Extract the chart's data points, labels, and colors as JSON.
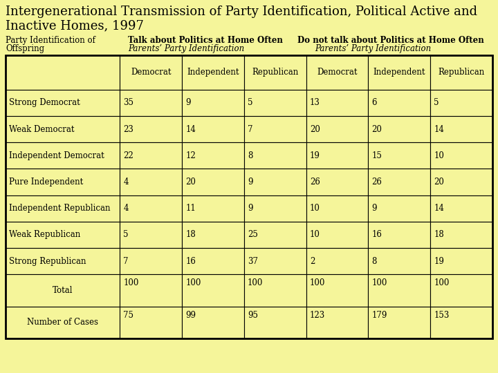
{
  "title_line1": "Intergenerational Transmission of Party Identification, Political Active and",
  "title_line2": "Inactive Homes, 1997",
  "group1_label": "Talk about Politics at Home Often",
  "group1_sublabel": "Parents’ Party Identification",
  "group2_label": "Do not talk about Politics at Home Often",
  "group2_sublabel": "Parents’ Party Identification",
  "col_header_left1": "Party Identification of",
  "col_header_left2": "Offspring",
  "col_headers": [
    "Democrat",
    "Independent",
    "Republican",
    "Democrat",
    "Independent",
    "Republican"
  ],
  "row_labels": [
    "Strong Democrat",
    "Weak Democrat",
    "Independent Democrat",
    "Pure Independent",
    "Independent Republican",
    "Weak Republican",
    "Strong Republican"
  ],
  "data": [
    [
      35,
      9,
      5,
      13,
      6,
      5
    ],
    [
      23,
      14,
      7,
      20,
      20,
      14
    ],
    [
      22,
      12,
      8,
      19,
      15,
      10
    ],
    [
      4,
      20,
      9,
      26,
      26,
      20
    ],
    [
      4,
      11,
      9,
      10,
      9,
      14
    ],
    [
      5,
      18,
      25,
      10,
      16,
      18
    ],
    [
      7,
      16,
      37,
      2,
      8,
      19
    ]
  ],
  "total_data": [
    100,
    100,
    100,
    100,
    100,
    100
  ],
  "cases_data": [
    75,
    99,
    95,
    123,
    179,
    153
  ],
  "total_label": "Total",
  "cases_label": "Number of Cases",
  "bg_color": "#f5f59a",
  "cell_bg": "#f5f59a",
  "font_family": "serif"
}
